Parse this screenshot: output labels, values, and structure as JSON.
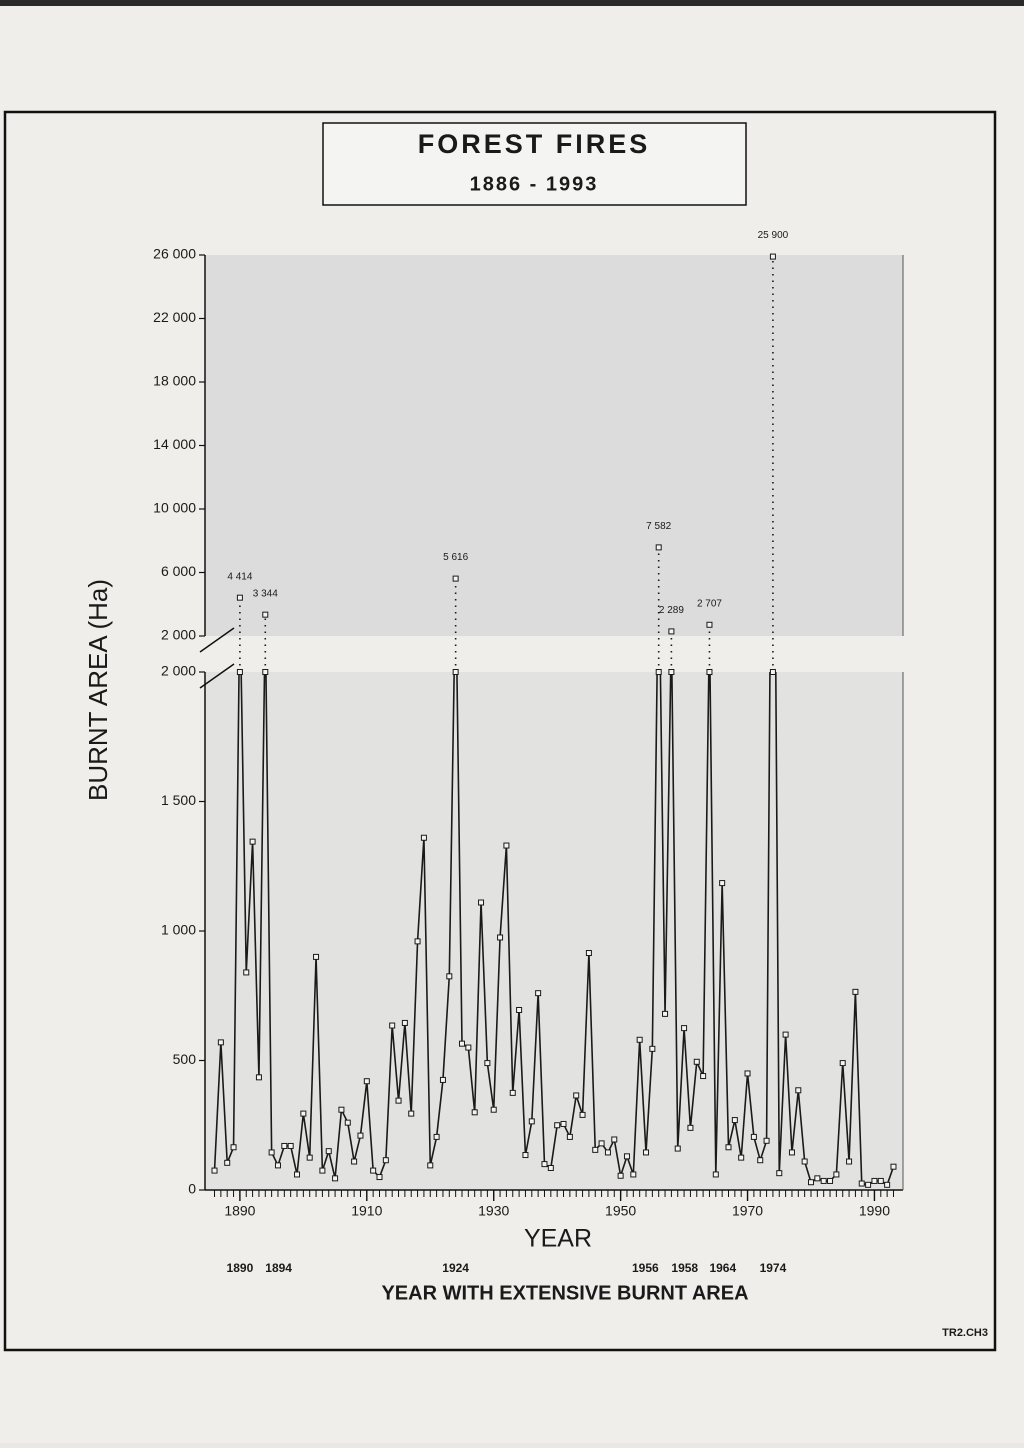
{
  "chart_data": {
    "type": "line",
    "title": "FOREST FIRES",
    "subtitle": "1886 - 1993",
    "x_label": "YEAR",
    "y_label": "BURNT AREA (Ha)",
    "x": [
      1886,
      1887,
      1888,
      1889,
      1890,
      1891,
      1892,
      1893,
      1894,
      1895,
      1896,
      1897,
      1898,
      1899,
      1900,
      1901,
      1902,
      1903,
      1904,
      1905,
      1906,
      1907,
      1908,
      1909,
      1910,
      1911,
      1912,
      1913,
      1914,
      1915,
      1916,
      1917,
      1918,
      1919,
      1920,
      1921,
      1922,
      1923,
      1924,
      1925,
      1926,
      1927,
      1928,
      1929,
      1930,
      1931,
      1932,
      1933,
      1934,
      1935,
      1936,
      1937,
      1938,
      1939,
      1940,
      1941,
      1942,
      1943,
      1944,
      1945,
      1946,
      1947,
      1948,
      1949,
      1950,
      1951,
      1952,
      1953,
      1954,
      1955,
      1956,
      1957,
      1958,
      1959,
      1960,
      1961,
      1962,
      1963,
      1964,
      1965,
      1966,
      1967,
      1968,
      1969,
      1970,
      1971,
      1972,
      1973,
      1974,
      1975,
      1976,
      1977,
      1978,
      1979,
      1980,
      1981,
      1982,
      1983,
      1984,
      1985,
      1986,
      1987,
      1988,
      1989,
      1990,
      1991,
      1992,
      1993
    ],
    "values": [
      75,
      570,
      105,
      165,
      4414,
      840,
      1345,
      435,
      3344,
      145,
      95,
      170,
      170,
      60,
      295,
      125,
      900,
      75,
      150,
      45,
      310,
      260,
      110,
      210,
      420,
      75,
      50,
      115,
      635,
      345,
      645,
      295,
      960,
      1360,
      95,
      205,
      425,
      825,
      5616,
      565,
      550,
      300,
      1110,
      490,
      310,
      975,
      1330,
      375,
      695,
      135,
      265,
      760,
      100,
      85,
      250,
      255,
      205,
      365,
      290,
      915,
      155,
      180,
      145,
      195,
      55,
      130,
      60,
      580,
      145,
      545,
      7582,
      680,
      2289,
      160,
      625,
      240,
      495,
      440,
      2707,
      60,
      1185,
      165,
      270,
      125,
      450,
      205,
      115,
      190,
      25900,
      65,
      600,
      145,
      385,
      110,
      30,
      45,
      35,
      35,
      60,
      490,
      110,
      765,
      25,
      20,
      35,
      35,
      20,
      90
    ],
    "value_labels": [
      null,
      null,
      null,
      null,
      "4 414",
      null,
      null,
      null,
      "3 344",
      null,
      null,
      null,
      null,
      null,
      null,
      null,
      null,
      null,
      null,
      null,
      null,
      null,
      null,
      null,
      null,
      null,
      null,
      null,
      null,
      null,
      null,
      null,
      null,
      null,
      null,
      null,
      null,
      null,
      "5 616",
      null,
      null,
      null,
      null,
      null,
      null,
      null,
      null,
      null,
      null,
      null,
      null,
      null,
      null,
      null,
      null,
      null,
      null,
      null,
      null,
      null,
      null,
      null,
      null,
      null,
      null,
      null,
      null,
      null,
      null,
      null,
      "7 582",
      null,
      "2 289",
      null,
      null,
      null,
      null,
      null,
      "2 707",
      null,
      null,
      null,
      null,
      null,
      null,
      null,
      null,
      null,
      "25 900",
      null,
      null,
      null,
      null,
      null,
      null,
      null,
      null,
      null,
      null,
      null,
      null,
      null,
      null,
      null,
      null,
      null,
      null,
      null
    ],
    "color": "#1a1a1a",
    "xlim": [
      1884.5,
      1994.5
    ],
    "xticks": [
      1890,
      1910,
      1930,
      1950,
      1970,
      1990
    ],
    "ylim": [
      0,
      2000
    ],
    "yticks": [
      0,
      500,
      {
        "value": 1000,
        "label": "1 000"
      },
      {
        "value": 1500,
        "label": "1 500"
      },
      {
        "value": 2000,
        "label": "2 000"
      }
    ],
    "upper_ylim": [
      2000,
      26000
    ],
    "upper_yticks": [
      {
        "value": 2000,
        "label": "2 000"
      },
      {
        "value": 6000,
        "label": "6 000"
      },
      {
        "value": 10000,
        "label": "10 000"
      },
      {
        "value": 14000,
        "label": "14 000"
      },
      {
        "value": 18000,
        "label": "18 000"
      },
      {
        "value": 22000,
        "label": "22 000"
      },
      {
        "value": 26000,
        "label": "26 000"
      }
    ],
    "extensive_years": [
      1890,
      1894,
      1924,
      1956,
      1958,
      1964,
      1974
    ],
    "extensive_label": "YEAR WITH EXTENSIVE BURNT AREA"
  },
  "footer": "TR2.CH3"
}
